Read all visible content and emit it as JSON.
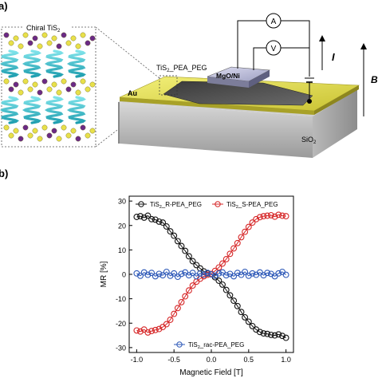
{
  "panel_a": {
    "label": "a)",
    "inset_title": "Chiral TiS",
    "inset_title_sub": "2",
    "device_label": "TiS",
    "device_label_sub": "2",
    "device_label_rest": "_PEA_PEG",
    "top_electrode": "MgO/Ni",
    "bottom_electrode": "Au",
    "substrate": "SiO",
    "substrate_sub": "2",
    "ammeter": "A",
    "voltmeter": "V",
    "current_symbol": "I",
    "field_symbol": "B"
  },
  "panel_b": {
    "label": "b)"
  },
  "chart_data": {
    "type": "scatter",
    "title": "",
    "xlabel": "Magnetic Field [T]",
    "ylabel": "MR [%]",
    "xlim": [
      -1.1,
      1.1
    ],
    "ylim": [
      -32,
      32
    ],
    "x_ticks": [
      "-1.0",
      "-0.5",
      "0.0",
      "0.5",
      "1.0"
    ],
    "y_ticks": [
      "-30",
      "-20",
      "-10",
      "0",
      "10",
      "20",
      "30"
    ],
    "legend_placement": "top and bottom",
    "series": [
      {
        "name": "TiS2_R-PEA_PEG",
        "legend_main": "TiS",
        "legend_sub": "2",
        "legend_rest": "_R-PEA_PEG",
        "color": "#111111",
        "x": [
          -1.0,
          -0.95,
          -0.9,
          -0.85,
          -0.8,
          -0.75,
          -0.7,
          -0.65,
          -0.6,
          -0.55,
          -0.5,
          -0.45,
          -0.4,
          -0.35,
          -0.3,
          -0.25,
          -0.2,
          -0.15,
          -0.1,
          -0.05,
          0.0,
          0.05,
          0.1,
          0.15,
          0.2,
          0.25,
          0.3,
          0.35,
          0.4,
          0.45,
          0.5,
          0.55,
          0.6,
          0.65,
          0.7,
          0.75,
          0.8,
          0.85,
          0.9,
          0.95,
          1.0
        ],
        "y": [
          23.5,
          23.8,
          23.2,
          24.0,
          22.6,
          22.4,
          21.6,
          21.2,
          19.6,
          17.6,
          15.8,
          13.6,
          11.6,
          9.6,
          7.4,
          5.4,
          3.8,
          2.4,
          1.2,
          0.4,
          0.0,
          -1.2,
          -2.6,
          -4.2,
          -6.4,
          -8.6,
          -10.8,
          -13.0,
          -15.4,
          -17.6,
          -19.4,
          -21.2,
          -22.6,
          -23.6,
          -24.2,
          -24.4,
          -24.8,
          -25.0,
          -24.6,
          -25.2,
          -26.0
        ]
      },
      {
        "name": "TiS2_S-PEA_PEG",
        "legend_main": "TiS",
        "legend_sub": "2",
        "legend_rest": "_S-PEA_PEG",
        "color": "#d62728",
        "x": [
          -1.0,
          -0.95,
          -0.9,
          -0.85,
          -0.8,
          -0.75,
          -0.7,
          -0.65,
          -0.6,
          -0.55,
          -0.5,
          -0.45,
          -0.4,
          -0.35,
          -0.3,
          -0.25,
          -0.2,
          -0.15,
          -0.1,
          -0.05,
          0.0,
          0.05,
          0.1,
          0.15,
          0.2,
          0.25,
          0.3,
          0.35,
          0.4,
          0.45,
          0.5,
          0.55,
          0.6,
          0.65,
          0.7,
          0.75,
          0.8,
          0.85,
          0.9,
          0.95,
          1.0
        ],
        "y": [
          -23.0,
          -23.4,
          -22.6,
          -23.8,
          -23.2,
          -22.8,
          -22.4,
          -21.6,
          -20.4,
          -18.6,
          -16.2,
          -13.8,
          -11.4,
          -9.0,
          -6.6,
          -4.6,
          -3.0,
          -1.8,
          -0.8,
          -0.2,
          0.2,
          1.4,
          2.8,
          4.4,
          6.2,
          8.4,
          10.6,
          12.8,
          15.2,
          17.4,
          19.4,
          21.2,
          22.6,
          23.4,
          23.8,
          24.0,
          24.2,
          23.6,
          24.4,
          24.0,
          23.8
        ]
      },
      {
        "name": "TiS2_rac-PEA_PEG",
        "legend_main": "TiS",
        "legend_sub": "2",
        "legend_rest": "_rac-PEA_PEG",
        "color": "#2e59b8",
        "x": [
          -1.0,
          -0.95,
          -0.9,
          -0.85,
          -0.8,
          -0.75,
          -0.7,
          -0.65,
          -0.6,
          -0.55,
          -0.5,
          -0.45,
          -0.4,
          -0.35,
          -0.3,
          -0.25,
          -0.2,
          -0.15,
          -0.1,
          -0.05,
          0.0,
          0.05,
          0.1,
          0.15,
          0.2,
          0.25,
          0.3,
          0.35,
          0.4,
          0.45,
          0.5,
          0.55,
          0.6,
          0.65,
          0.7,
          0.75,
          0.8,
          0.85,
          0.9,
          0.95,
          1.0
        ],
        "y": [
          0.4,
          -0.6,
          0.8,
          -0.2,
          0.6,
          -0.8,
          0.2,
          -0.4,
          1.0,
          -0.6,
          0.4,
          -1.0,
          0.2,
          0.8,
          -0.4,
          0.6,
          -0.8,
          0.4,
          -0.2,
          0.6,
          0.0,
          -0.6,
          0.4,
          0.8,
          -0.4,
          0.2,
          -0.8,
          0.6,
          -0.2,
          1.0,
          -0.6,
          0.4,
          -0.2,
          0.8,
          -0.4,
          0.6,
          0.2,
          -0.8,
          0.4,
          1.0,
          -0.2
        ]
      }
    ]
  }
}
